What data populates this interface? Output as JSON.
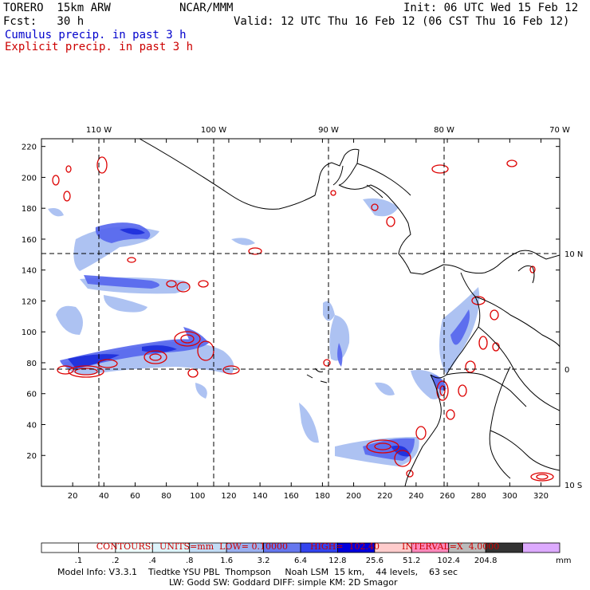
{
  "header": {
    "model": "TORERO  15km ARW",
    "org": "NCAR/MMM",
    "init": "Init: 06 UTC Wed 15 Feb 12",
    "fcst": "Fcst:   30 h",
    "valid": "Valid: 12 UTC Thu 16 Feb 12 (06 CST Thu 16 Feb 12)",
    "cumulus": "Cumulus precip. in past 3 h",
    "explicit": "Explicit precip. in past 3 h"
  },
  "map": {
    "lon_labels": [
      "110 W",
      "100 W",
      "90 W",
      "80 W",
      "70 W"
    ],
    "lat_labels": [
      "10 N",
      "0",
      "10 S"
    ],
    "x_ticks": [
      "20",
      "40",
      "60",
      "80",
      "100",
      "120",
      "140",
      "160",
      "180",
      "200",
      "220",
      "240",
      "260",
      "280",
      "300",
      "320"
    ],
    "y_ticks": [
      "20",
      "40",
      "60",
      "80",
      "100",
      "120",
      "140",
      "160",
      "180",
      "200",
      "220"
    ],
    "x_range": [
      0,
      332
    ],
    "y_range": [
      0,
      225
    ],
    "meridian_x": [
      38,
      113,
      186,
      259
    ],
    "parallel_y": [
      150,
      75
    ],
    "colors": {
      "cumulus": "#3355ee",
      "cumulus_light": "#9fb8f0",
      "explicit": "#dd0000",
      "grid": "#000000"
    }
  },
  "contours_info": {
    "units": "CONTOURS:  UNITS=mm  LOW= 0.10000",
    "high": "HIGH=  102.40",
    "interval": "INTERVAL=X  4.0000"
  },
  "colorbar": {
    "labels": [
      ".1",
      ".2",
      ".4",
      ".8",
      "1.6",
      "3.2",
      "6.4",
      "12.8",
      "25.6",
      "51.2",
      "102.4",
      "204.8"
    ],
    "unit": "mm",
    "colors": [
      "#ffffff",
      "#ffffff",
      "#eeffff",
      "#ddf4fb",
      "#c2dcf5",
      "#9ab0f0",
      "#6677ee",
      "#3344ee",
      "#0000dd",
      "#ffcccc",
      "#ff88bb",
      "#bbbbbb",
      "#333333",
      "#ddaaff"
    ]
  },
  "footer": {
    "line1": "Model Info: V3.3.1    Tiedtke YSU PBL  Thompson     Noah LSM  15 km,    44 levels,    63 sec",
    "line2": "LW: Godd SW: Goddard DIFF: simple KM: 2D Smagor"
  }
}
